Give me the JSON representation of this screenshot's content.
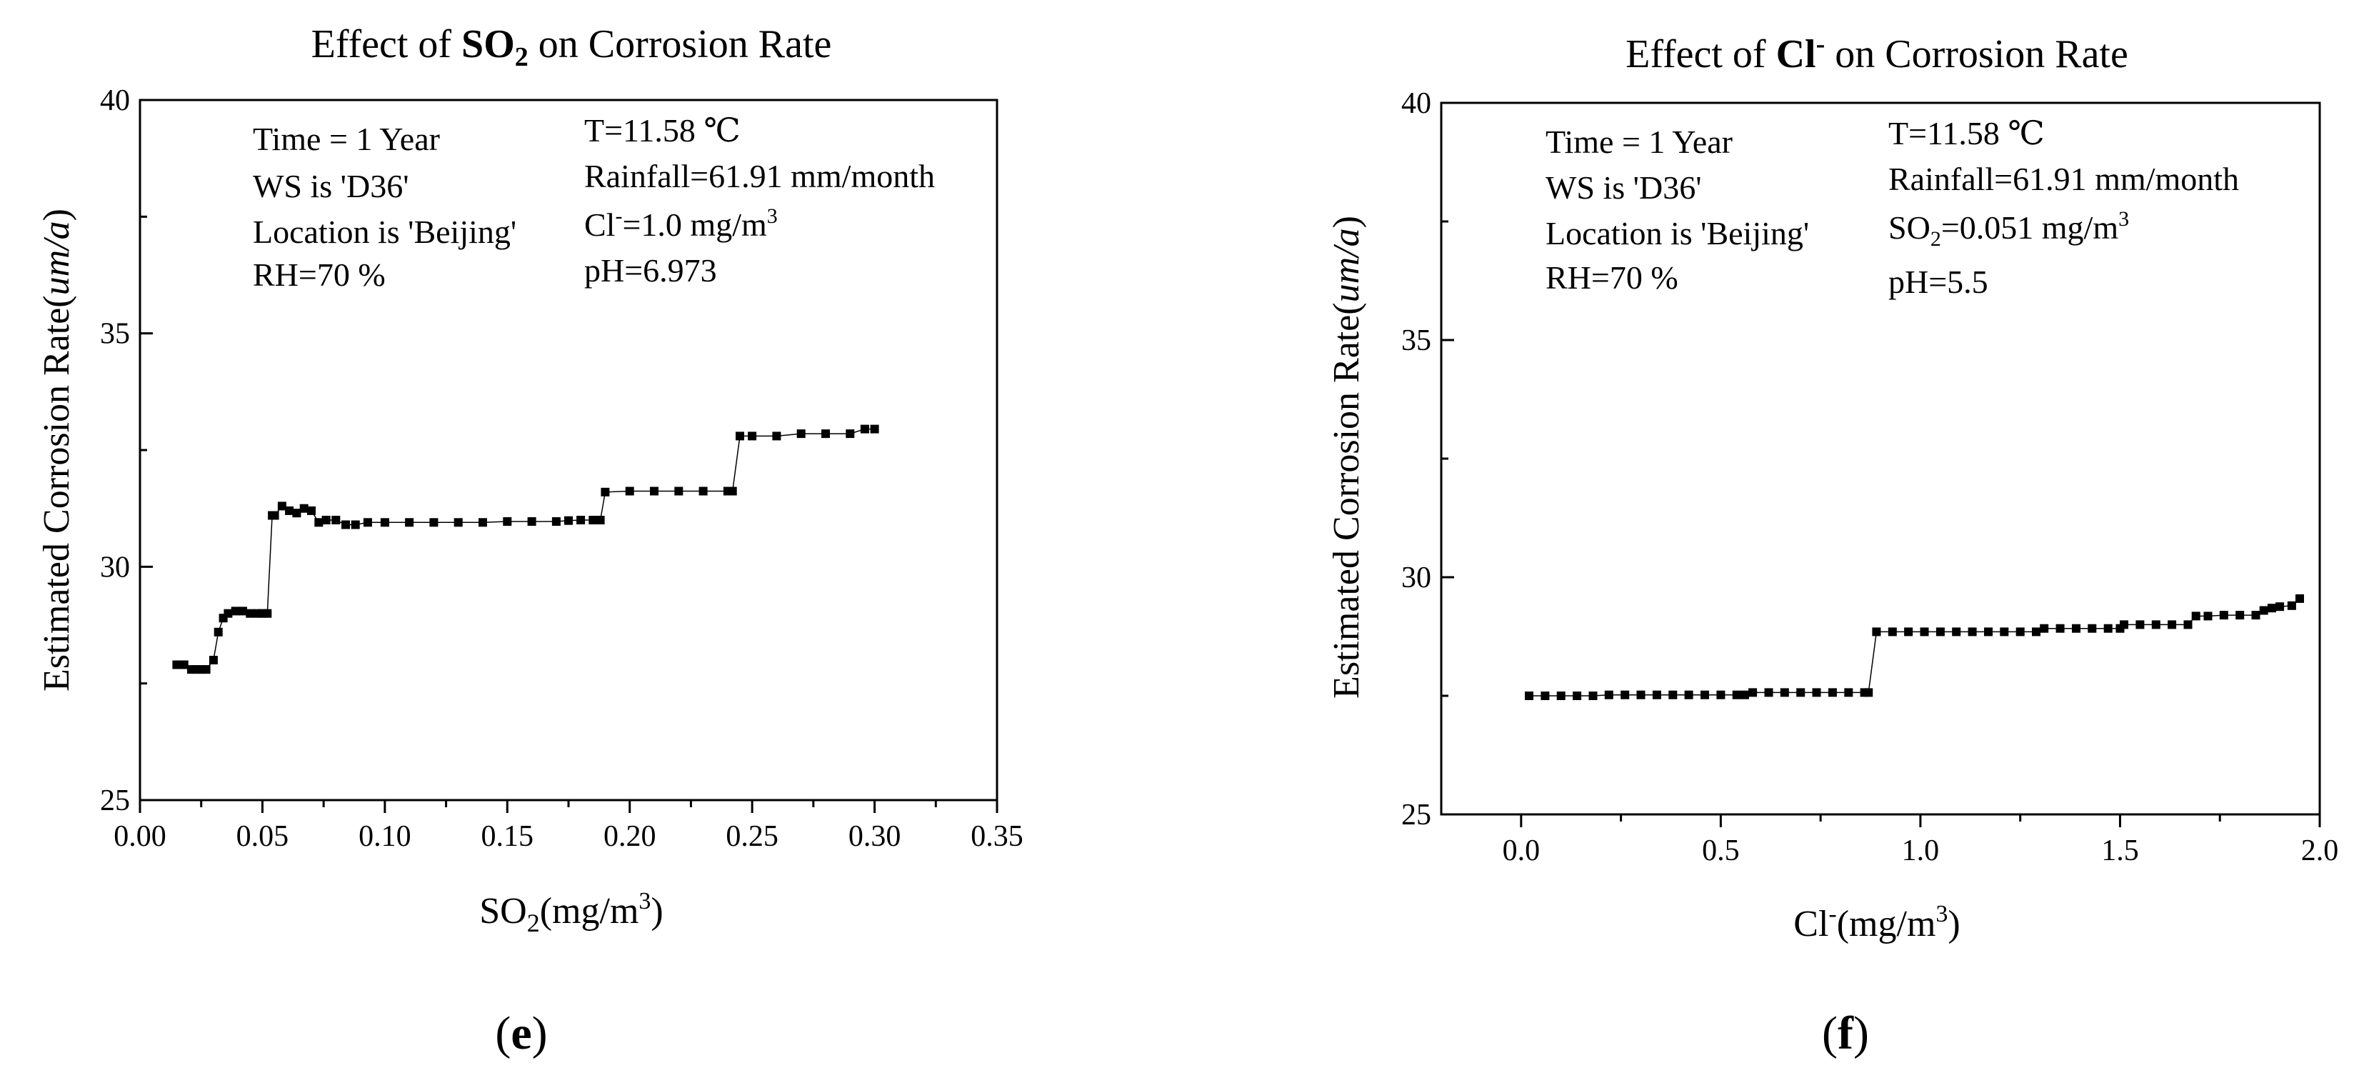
{
  "chart_data": [
    {
      "type": "line",
      "panel_label": "e",
      "title": {
        "prefix": "Effect of ",
        "bold": "SO",
        "bold_sub": "2",
        "suffix": " on Corrosion Rate"
      },
      "xlabel": {
        "main": "SO",
        "sub": "2",
        "rest": "(mg/m",
        "sup": "3",
        "end": ")"
      },
      "ylabel": {
        "main": "Estimated Corrosion Rate(",
        "ital": "um/a",
        "end": ")"
      },
      "xlim": [
        0.0,
        0.35
      ],
      "ylim": [
        25,
        40
      ],
      "xticks": [
        "0.00",
        "0.05",
        "0.10",
        "0.15",
        "0.20",
        "0.25",
        "0.30",
        "0.35"
      ],
      "yticks": [
        "25",
        "30",
        "35",
        "40"
      ],
      "annotations_left": [
        "Time = 1 Year",
        "WS is 'D36'",
        "Location is 'Beijing'",
        "RH=70 %"
      ],
      "annotations_right": {
        "temp": "T=11.58 ℃",
        "rain": "Rainfall=61.91 mm/month",
        "conc": {
          "main": "Cl",
          "sup": "-",
          "rest": "=1.0 mg/m",
          "sup2": "3"
        },
        "ph": "pH=6.973"
      },
      "series": [
        {
          "name": "Estimated corrosion rate",
          "x": [
            0.015,
            0.018,
            0.021,
            0.023,
            0.025,
            0.027,
            0.03,
            0.032,
            0.034,
            0.036,
            0.039,
            0.042,
            0.045,
            0.048,
            0.05,
            0.052,
            0.054,
            0.055,
            0.058,
            0.061,
            0.064,
            0.067,
            0.07,
            0.073,
            0.076,
            0.08,
            0.084,
            0.088,
            0.093,
            0.1,
            0.11,
            0.12,
            0.13,
            0.14,
            0.15,
            0.16,
            0.17,
            0.175,
            0.18,
            0.185,
            0.188,
            0.19,
            0.2,
            0.21,
            0.22,
            0.23,
            0.24,
            0.242,
            0.245,
            0.25,
            0.26,
            0.27,
            0.28,
            0.29,
            0.296,
            0.3
          ],
          "values": [
            27.9,
            27.9,
            27.8,
            27.8,
            27.8,
            27.8,
            28.0,
            28.6,
            28.9,
            29.0,
            29.05,
            29.05,
            29.0,
            29.0,
            29.0,
            29.0,
            31.1,
            31.1,
            31.3,
            31.2,
            31.15,
            31.25,
            31.2,
            30.95,
            31.0,
            31.0,
            30.9,
            30.9,
            30.95,
            30.95,
            30.95,
            30.95,
            30.95,
            30.95,
            30.97,
            30.97,
            30.97,
            30.99,
            31.0,
            31.0,
            31.0,
            31.6,
            31.62,
            31.62,
            31.62,
            31.62,
            31.62,
            31.62,
            32.8,
            32.8,
            32.8,
            32.85,
            32.85,
            32.85,
            32.95,
            32.95
          ]
        }
      ]
    },
    {
      "type": "line",
      "panel_label": "f",
      "title": {
        "prefix": "Effect of ",
        "bold": "Cl",
        "bold_sup": "-",
        "suffix": " on Corrosion Rate"
      },
      "xlabel": {
        "main": "Cl",
        "sup": "-",
        "rest": "(mg/m",
        "sup2": "3",
        "end": ")"
      },
      "ylabel": {
        "main": "Estimated Corrosion Rate(",
        "ital": "um/a",
        "end": ")"
      },
      "xlim": [
        -0.2,
        2.0
      ],
      "ylim": [
        25,
        40
      ],
      "xticks": [
        "0.0",
        "0.5",
        "1.0",
        "1.5",
        "2.0"
      ],
      "yticks": [
        "25",
        "30",
        "35",
        "40"
      ],
      "annotations_left": [
        "Time = 1 Year",
        "WS is 'D36'",
        "Location is 'Beijing'",
        "RH=70 %"
      ],
      "annotations_right": {
        "temp": "T=11.58 ℃",
        "rain": "Rainfall=61.91 mm/month",
        "conc": {
          "main": "SO",
          "sub": "2",
          "rest": "=0.051 mg/m",
          "sup2": "3"
        },
        "ph": "pH=5.5"
      },
      "series": [
        {
          "name": "Estimated corrosion rate",
          "x": [
            0.02,
            0.06,
            0.1,
            0.14,
            0.18,
            0.22,
            0.26,
            0.3,
            0.34,
            0.38,
            0.42,
            0.46,
            0.5,
            0.54,
            0.56,
            0.58,
            0.62,
            0.66,
            0.7,
            0.74,
            0.78,
            0.82,
            0.86,
            0.87,
            0.89,
            0.93,
            0.97,
            1.01,
            1.05,
            1.09,
            1.13,
            1.17,
            1.21,
            1.25,
            1.29,
            1.31,
            1.35,
            1.39,
            1.43,
            1.47,
            1.5,
            1.51,
            1.55,
            1.59,
            1.63,
            1.67,
            1.69,
            1.72,
            1.76,
            1.8,
            1.84,
            1.86,
            1.88,
            1.9,
            1.93,
            1.95
          ],
          "values": [
            27.5,
            27.5,
            27.5,
            27.5,
            27.5,
            27.52,
            27.52,
            27.52,
            27.52,
            27.52,
            27.52,
            27.52,
            27.52,
            27.52,
            27.52,
            27.57,
            27.57,
            27.57,
            27.57,
            27.57,
            27.57,
            27.57,
            27.57,
            27.57,
            28.85,
            28.85,
            28.85,
            28.85,
            28.85,
            28.85,
            28.85,
            28.85,
            28.85,
            28.85,
            28.85,
            28.92,
            28.92,
            28.92,
            28.92,
            28.92,
            28.92,
            29.0,
            29.0,
            29.0,
            29.0,
            29.0,
            29.18,
            29.18,
            29.2,
            29.2,
            29.2,
            29.3,
            29.35,
            29.38,
            29.4,
            29.55
          ]
        }
      ]
    }
  ]
}
